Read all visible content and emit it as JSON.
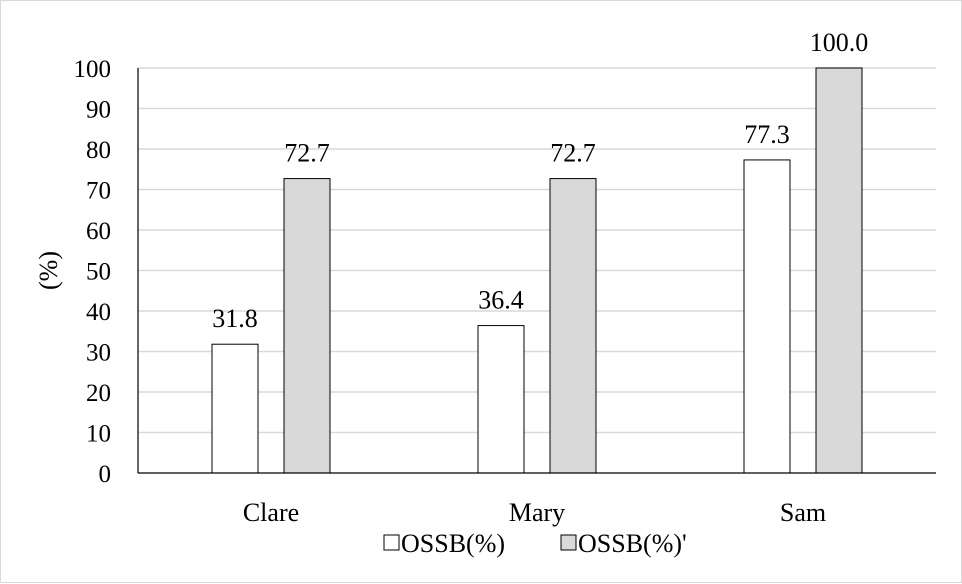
{
  "chart_data": {
    "type": "bar",
    "categories": [
      "Clare",
      "Mary",
      "Sam"
    ],
    "series": [
      {
        "name": "OSSB(%)",
        "values": [
          31.8,
          36.4,
          77.3
        ],
        "color": "#ffffff",
        "labels": [
          "31.8",
          "36.4",
          "77.3"
        ]
      },
      {
        "name": "OSSB(%)'",
        "values": [
          72.7,
          72.7,
          100.0
        ],
        "color": "#d9d9d9",
        "labels": [
          "72.7",
          "72.7",
          "100.0"
        ]
      }
    ],
    "ylabel": "(%)",
    "xlabel": "",
    "title": "",
    "ylim": [
      0,
      100
    ],
    "yticks": [
      0,
      10,
      20,
      30,
      40,
      50,
      60,
      70,
      80,
      90,
      100
    ],
    "grid": true,
    "legend_position": "bottom",
    "colors": {
      "bar_outline": "#000000",
      "gridline": "#d9d9d9",
      "axis": "#000000"
    }
  }
}
